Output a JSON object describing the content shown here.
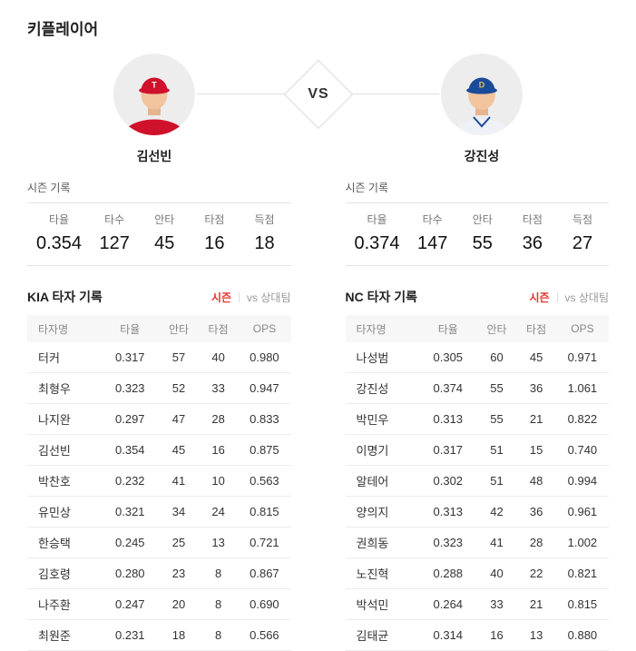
{
  "page": {
    "title": "키플레이어"
  },
  "colors": {
    "accent_red": "#e5332c",
    "kia_red": "#d0112b",
    "nc_blue": "#1a4b9b",
    "cap_gold": "#e3bd5c"
  },
  "matchup": {
    "vs_label": "VS",
    "left": {
      "name": "김선빈"
    },
    "right": {
      "name": "강진성"
    }
  },
  "season_records": {
    "label": "시즌 기록",
    "left": {
      "headers": [
        "타율",
        "타수",
        "안타",
        "타점",
        "득점"
      ],
      "values": [
        "0.354",
        "127",
        "45",
        "16",
        "18"
      ]
    },
    "right": {
      "headers": [
        "타율",
        "타수",
        "안타",
        "타점",
        "득점"
      ],
      "values": [
        "0.374",
        "147",
        "55",
        "36",
        "27"
      ]
    }
  },
  "tables": [
    {
      "title": "KIA 타자 기록",
      "tabs": [
        {
          "label": "시즌",
          "active": true
        },
        {
          "label": "vs 상대팀",
          "active": false
        }
      ],
      "columns": [
        "타자명",
        "타율",
        "안타",
        "타점",
        "OPS"
      ],
      "rows": [
        [
          "터커",
          "0.317",
          "57",
          "40",
          "0.980"
        ],
        [
          "최형우",
          "0.323",
          "52",
          "33",
          "0.947"
        ],
        [
          "나지완",
          "0.297",
          "47",
          "28",
          "0.833"
        ],
        [
          "김선빈",
          "0.354",
          "45",
          "16",
          "0.875"
        ],
        [
          "박찬호",
          "0.232",
          "41",
          "10",
          "0.563"
        ],
        [
          "유민상",
          "0.321",
          "34",
          "24",
          "0.815"
        ],
        [
          "한승택",
          "0.245",
          "25",
          "13",
          "0.721"
        ],
        [
          "김호령",
          "0.280",
          "23",
          "8",
          "0.867"
        ],
        [
          "나주환",
          "0.247",
          "20",
          "8",
          "0.690"
        ],
        [
          "최원준",
          "0.231",
          "18",
          "8",
          "0.566"
        ]
      ]
    },
    {
      "title": "NC 타자 기록",
      "tabs": [
        {
          "label": "시즌",
          "active": true
        },
        {
          "label": "vs 상대팀",
          "active": false
        }
      ],
      "columns": [
        "타자명",
        "타율",
        "안타",
        "타점",
        "OPS"
      ],
      "rows": [
        [
          "나성범",
          "0.305",
          "60",
          "45",
          "0.971"
        ],
        [
          "강진성",
          "0.374",
          "55",
          "36",
          "1.061"
        ],
        [
          "박민우",
          "0.313",
          "55",
          "21",
          "0.822"
        ],
        [
          "이명기",
          "0.317",
          "51",
          "15",
          "0.740"
        ],
        [
          "알테어",
          "0.302",
          "51",
          "48",
          "0.994"
        ],
        [
          "양의지",
          "0.313",
          "42",
          "36",
          "0.961"
        ],
        [
          "권희동",
          "0.323",
          "41",
          "28",
          "1.002"
        ],
        [
          "노진혁",
          "0.288",
          "40",
          "22",
          "0.821"
        ],
        [
          "박석민",
          "0.264",
          "33",
          "21",
          "0.815"
        ],
        [
          "김태균",
          "0.314",
          "16",
          "13",
          "0.880"
        ]
      ]
    }
  ]
}
